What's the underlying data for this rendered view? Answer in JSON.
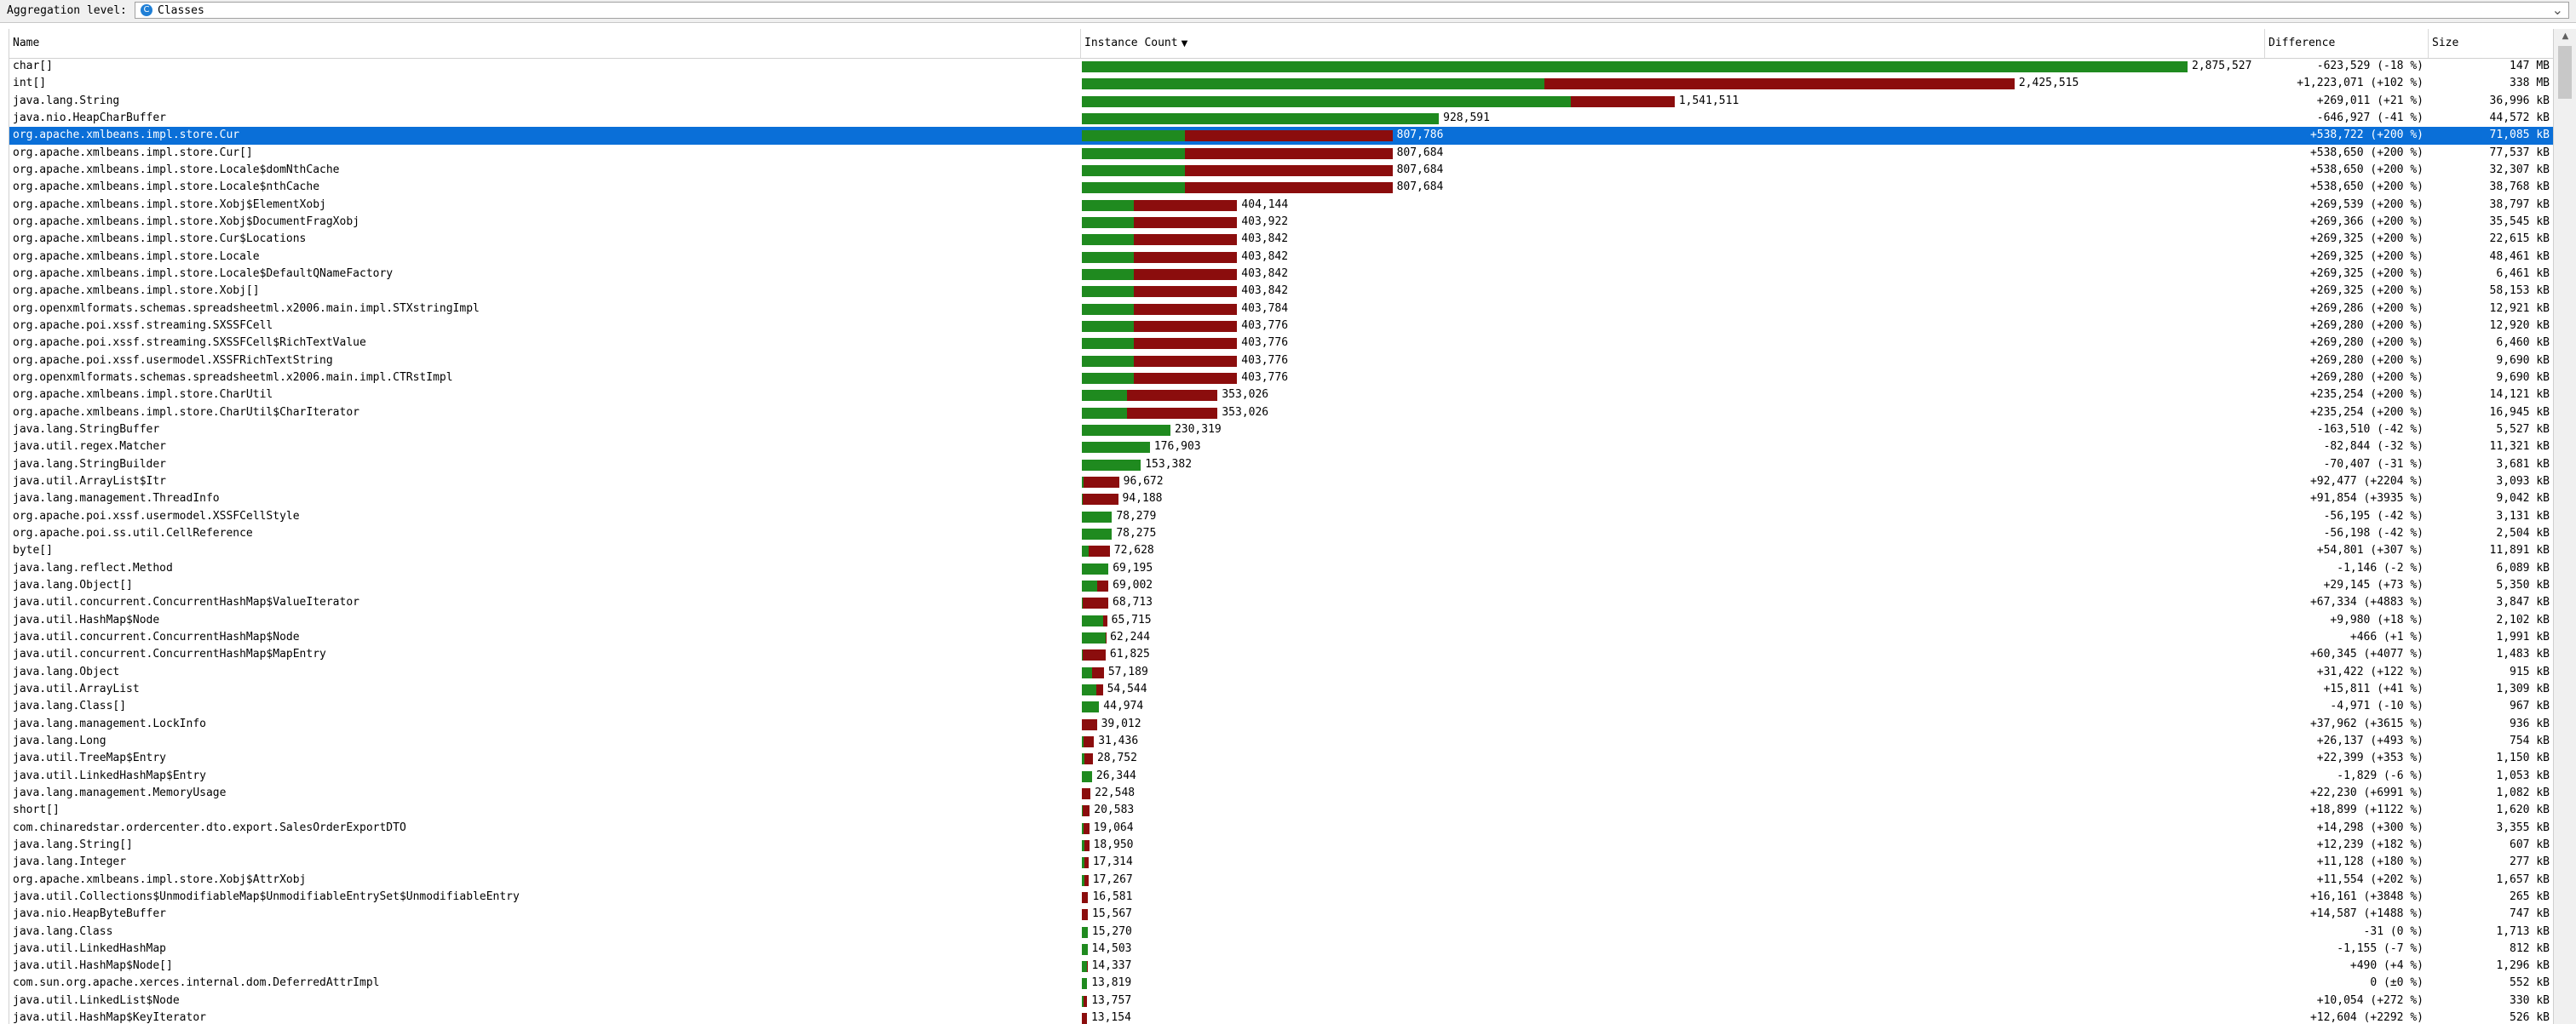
{
  "aggregation": {
    "label": "Aggregation level:",
    "value": "Classes",
    "icon": "class-icon",
    "icon_glyph": "C"
  },
  "columns": {
    "name": "Name",
    "count": "Instance Count",
    "difference": "Difference",
    "size": "Size",
    "sort_glyph": "▼"
  },
  "colors": {
    "green": "#1f8a1f",
    "red": "#8b0d0d",
    "selection": "#0a6fd8"
  },
  "max_instance_count": 2875527,
  "selected_index": 4,
  "rows": [
    {
      "name": "char[]",
      "count": "2,875,527",
      "count_value": 2875527,
      "prev_value": 3499056,
      "difference": "-623,529 (-18 %)",
      "size": "147 MB"
    },
    {
      "name": "int[]",
      "count": "2,425,515",
      "count_value": 2425515,
      "prev_value": 1202444,
      "difference": "+1,223,071 (+102 %)",
      "size": "338 MB"
    },
    {
      "name": "java.lang.String",
      "count": "1,541,511",
      "count_value": 1541511,
      "prev_value": 1272500,
      "difference": "+269,011 (+21 %)",
      "size": "36,996 kB"
    },
    {
      "name": "java.nio.HeapCharBuffer",
      "count": "928,591",
      "count_value": 928591,
      "prev_value": 1575518,
      "difference": "-646,927 (-41 %)",
      "size": "44,572 kB"
    },
    {
      "name": "org.apache.xmlbeans.impl.store.Cur",
      "count": "807,786",
      "count_value": 807786,
      "prev_value": 269064,
      "difference": "+538,722 (+200 %)",
      "size": "71,085 kB"
    },
    {
      "name": "org.apache.xmlbeans.impl.store.Cur[]",
      "count": "807,684",
      "count_value": 807684,
      "prev_value": 269034,
      "difference": "+538,650 (+200 %)",
      "size": "77,537 kB"
    },
    {
      "name": "org.apache.xmlbeans.impl.store.Locale$domNthCache",
      "count": "807,684",
      "count_value": 807684,
      "prev_value": 269034,
      "difference": "+538,650 (+200 %)",
      "size": "32,307 kB"
    },
    {
      "name": "org.apache.xmlbeans.impl.store.Locale$nthCache",
      "count": "807,684",
      "count_value": 807684,
      "prev_value": 269034,
      "difference": "+538,650 (+200 %)",
      "size": "38,768 kB"
    },
    {
      "name": "org.apache.xmlbeans.impl.store.Xobj$ElementXobj",
      "count": "404,144",
      "count_value": 404144,
      "prev_value": 134605,
      "difference": "+269,539 (+200 %)",
      "size": "38,797 kB"
    },
    {
      "name": "org.apache.xmlbeans.impl.store.Xobj$DocumentFragXobj",
      "count": "403,922",
      "count_value": 403922,
      "prev_value": 134556,
      "difference": "+269,366 (+200 %)",
      "size": "35,545 kB"
    },
    {
      "name": "org.apache.xmlbeans.impl.store.Cur$Locations",
      "count": "403,842",
      "count_value": 403842,
      "prev_value": 134517,
      "difference": "+269,325 (+200 %)",
      "size": "22,615 kB"
    },
    {
      "name": "org.apache.xmlbeans.impl.store.Locale",
      "count": "403,842",
      "count_value": 403842,
      "prev_value": 134517,
      "difference": "+269,325 (+200 %)",
      "size": "48,461 kB"
    },
    {
      "name": "org.apache.xmlbeans.impl.store.Locale$DefaultQNameFactory",
      "count": "403,842",
      "count_value": 403842,
      "prev_value": 134517,
      "difference": "+269,325 (+200 %)",
      "size": "6,461 kB"
    },
    {
      "name": "org.apache.xmlbeans.impl.store.Xobj[]",
      "count": "403,842",
      "count_value": 403842,
      "prev_value": 134517,
      "difference": "+269,325 (+200 %)",
      "size": "58,153 kB"
    },
    {
      "name": "org.openxmlformats.schemas.spreadsheetml.x2006.main.impl.STXstringImpl",
      "count": "403,784",
      "count_value": 403784,
      "prev_value": 134498,
      "difference": "+269,286 (+200 %)",
      "size": "12,921 kB"
    },
    {
      "name": "org.apache.poi.xssf.streaming.SXSSFCell",
      "count": "403,776",
      "count_value": 403776,
      "prev_value": 134496,
      "difference": "+269,280 (+200 %)",
      "size": "12,920 kB"
    },
    {
      "name": "org.apache.poi.xssf.streaming.SXSSFCell$RichTextValue",
      "count": "403,776",
      "count_value": 403776,
      "prev_value": 134496,
      "difference": "+269,280 (+200 %)",
      "size": "6,460 kB"
    },
    {
      "name": "org.apache.poi.xssf.usermodel.XSSFRichTextString",
      "count": "403,776",
      "count_value": 403776,
      "prev_value": 134496,
      "difference": "+269,280 (+200 %)",
      "size": "9,690 kB"
    },
    {
      "name": "org.openxmlformats.schemas.spreadsheetml.x2006.main.impl.CTRstImpl",
      "count": "403,776",
      "count_value": 403776,
      "prev_value": 134496,
      "difference": "+269,280 (+200 %)",
      "size": "9,690 kB"
    },
    {
      "name": "org.apache.xmlbeans.impl.store.CharUtil",
      "count": "353,026",
      "count_value": 353026,
      "prev_value": 117772,
      "difference": "+235,254 (+200 %)",
      "size": "14,121 kB"
    },
    {
      "name": "org.apache.xmlbeans.impl.store.CharUtil$CharIterator",
      "count": "353,026",
      "count_value": 353026,
      "prev_value": 117772,
      "difference": "+235,254 (+200 %)",
      "size": "16,945 kB"
    },
    {
      "name": "java.lang.StringBuffer",
      "count": "230,319",
      "count_value": 230319,
      "prev_value": 393829,
      "difference": "-163,510 (-42 %)",
      "size": "5,527 kB"
    },
    {
      "name": "java.util.regex.Matcher",
      "count": "176,903",
      "count_value": 176903,
      "prev_value": 259747,
      "difference": "-82,844 (-32 %)",
      "size": "11,321 kB"
    },
    {
      "name": "java.lang.StringBuilder",
      "count": "153,382",
      "count_value": 153382,
      "prev_value": 223789,
      "difference": "-70,407 (-31 %)",
      "size": "3,681 kB"
    },
    {
      "name": "java.util.ArrayList$Itr",
      "count": "96,672",
      "count_value": 96672,
      "prev_value": 4195,
      "difference": "+92,477 (+2204 %)",
      "size": "3,093 kB"
    },
    {
      "name": "java.lang.management.ThreadInfo",
      "count": "94,188",
      "count_value": 94188,
      "prev_value": 2334,
      "difference": "+91,854 (+3935 %)",
      "size": "9,042 kB"
    },
    {
      "name": "org.apache.poi.xssf.usermodel.XSSFCellStyle",
      "count": "78,279",
      "count_value": 78279,
      "prev_value": 134474,
      "difference": "-56,195 (-42 %)",
      "size": "3,131 kB"
    },
    {
      "name": "org.apache.poi.ss.util.CellReference",
      "count": "78,275",
      "count_value": 78275,
      "prev_value": 134473,
      "difference": "-56,198 (-42 %)",
      "size": "2,504 kB"
    },
    {
      "name": "byte[]",
      "count": "72,628",
      "count_value": 72628,
      "prev_value": 17827,
      "difference": "+54,801 (+307 %)",
      "size": "11,891 kB"
    },
    {
      "name": "java.lang.reflect.Method",
      "count": "69,195",
      "count_value": 69195,
      "prev_value": 70341,
      "difference": "-1,146 (-2 %)",
      "size": "6,089 kB"
    },
    {
      "name": "java.lang.Object[]",
      "count": "69,002",
      "count_value": 69002,
      "prev_value": 39857,
      "difference": "+29,145 (+73 %)",
      "size": "5,350 kB"
    },
    {
      "name": "java.util.concurrent.ConcurrentHashMap$ValueIterator",
      "count": "68,713",
      "count_value": 68713,
      "prev_value": 1379,
      "difference": "+67,334 (+4883 %)",
      "size": "3,847 kB"
    },
    {
      "name": "java.util.HashMap$Node",
      "count": "65,715",
      "count_value": 65715,
      "prev_value": 55735,
      "difference": "+9,980 (+18 %)",
      "size": "2,102 kB"
    },
    {
      "name": "java.util.concurrent.ConcurrentHashMap$Node",
      "count": "62,244",
      "count_value": 62244,
      "prev_value": 61778,
      "difference": "+466 (+1 %)",
      "size": "1,991 kB"
    },
    {
      "name": "java.util.concurrent.ConcurrentHashMap$MapEntry",
      "count": "61,825",
      "count_value": 61825,
      "prev_value": 1480,
      "difference": "+60,345 (+4077 %)",
      "size": "1,483 kB"
    },
    {
      "name": "java.lang.Object",
      "count": "57,189",
      "count_value": 57189,
      "prev_value": 25767,
      "difference": "+31,422 (+122 %)",
      "size": "915 kB"
    },
    {
      "name": "java.util.ArrayList",
      "count": "54,544",
      "count_value": 54544,
      "prev_value": 38733,
      "difference": "+15,811 (+41 %)",
      "size": "1,309 kB"
    },
    {
      "name": "java.lang.Class[]",
      "count": "44,974",
      "count_value": 44974,
      "prev_value": 49945,
      "difference": "-4,971 (-10 %)",
      "size": "967 kB"
    },
    {
      "name": "java.lang.management.LockInfo",
      "count": "39,012",
      "count_value": 39012,
      "prev_value": 1050,
      "difference": "+37,962 (+3615 %)",
      "size": "936 kB"
    },
    {
      "name": "java.lang.Long",
      "count": "31,436",
      "count_value": 31436,
      "prev_value": 5299,
      "difference": "+26,137 (+493 %)",
      "size": "754 kB"
    },
    {
      "name": "java.util.TreeMap$Entry",
      "count": "28,752",
      "count_value": 28752,
      "prev_value": 6353,
      "difference": "+22,399 (+353 %)",
      "size": "1,150 kB"
    },
    {
      "name": "java.util.LinkedHashMap$Entry",
      "count": "26,344",
      "count_value": 26344,
      "prev_value": 28173,
      "difference": "-1,829 (-6 %)",
      "size": "1,053 kB"
    },
    {
      "name": "java.lang.management.MemoryUsage",
      "count": "22,548",
      "count_value": 22548,
      "prev_value": 318,
      "difference": "+22,230 (+6991 %)",
      "size": "1,082 kB"
    },
    {
      "name": "short[]",
      "count": "20,583",
      "count_value": 20583,
      "prev_value": 1684,
      "difference": "+18,899 (+1122 %)",
      "size": "1,620 kB"
    },
    {
      "name": "com.chinaredstar.ordercenter.dto.export.SalesOrderExportDTO",
      "count": "19,064",
      "count_value": 19064,
      "prev_value": 4766,
      "difference": "+14,298 (+300 %)",
      "size": "3,355 kB"
    },
    {
      "name": "java.lang.String[]",
      "count": "18,950",
      "count_value": 18950,
      "prev_value": 6711,
      "difference": "+12,239 (+182 %)",
      "size": "607 kB"
    },
    {
      "name": "java.lang.Integer",
      "count": "17,314",
      "count_value": 17314,
      "prev_value": 6186,
      "difference": "+11,128 (+180 %)",
      "size": "277 kB"
    },
    {
      "name": "org.apache.xmlbeans.impl.store.Xobj$AttrXobj",
      "count": "17,267",
      "count_value": 17267,
      "prev_value": 5713,
      "difference": "+11,554 (+202 %)",
      "size": "1,657 kB"
    },
    {
      "name": "java.util.Collections$UnmodifiableMap$UnmodifiableEntrySet$UnmodifiableEntry",
      "count": "16,581",
      "count_value": 16581,
      "prev_value": 420,
      "difference": "+16,161 (+3848 %)",
      "size": "265 kB"
    },
    {
      "name": "java.nio.HeapByteBuffer",
      "count": "15,567",
      "count_value": 15567,
      "prev_value": 980,
      "difference": "+14,587 (+1488 %)",
      "size": "747 kB"
    },
    {
      "name": "java.lang.Class",
      "count": "15,270",
      "count_value": 15270,
      "prev_value": 15301,
      "difference": "-31 (0 %)",
      "size": "1,713 kB"
    },
    {
      "name": "java.util.LinkedHashMap",
      "count": "14,503",
      "count_value": 14503,
      "prev_value": 15658,
      "difference": "-1,155 (-7 %)",
      "size": "812 kB"
    },
    {
      "name": "java.util.HashMap$Node[]",
      "count": "14,337",
      "count_value": 14337,
      "prev_value": 13847,
      "difference": "+490 (+4 %)",
      "size": "1,296 kB"
    },
    {
      "name": "com.sun.org.apache.xerces.internal.dom.DeferredAttrImpl",
      "count": "13,819",
      "count_value": 13819,
      "prev_value": 13819,
      "difference": "0 (±0 %)",
      "size": "552 kB"
    },
    {
      "name": "java.util.LinkedList$Node",
      "count": "13,757",
      "count_value": 13757,
      "prev_value": 3703,
      "difference": "+10,054 (+272 %)",
      "size": "330 kB"
    },
    {
      "name": "java.util.HashMap$KeyIterator",
      "count": "13,154",
      "count_value": 13154,
      "prev_value": 550,
      "difference": "+12,604 (+2292 %)",
      "size": "526 kB"
    }
  ]
}
